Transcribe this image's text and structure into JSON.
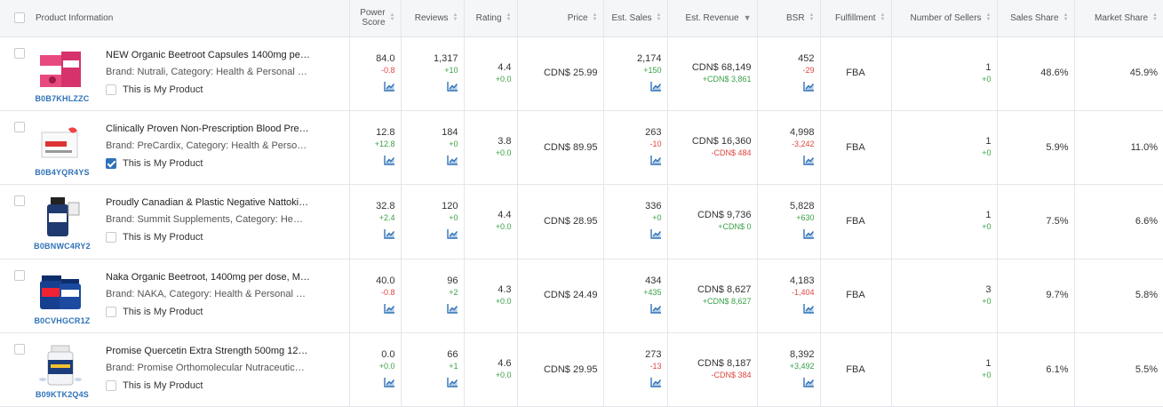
{
  "colors": {
    "accent": "#2f72b8",
    "positive": "#3aa047",
    "negative": "#e0453f",
    "header_bg": "#f4f6f8"
  },
  "columns": {
    "product_information": "Product Information",
    "power_score_line1": "Power",
    "power_score_line2": "Score",
    "reviews": "Reviews",
    "rating": "Rating",
    "price": "Price",
    "est_sales": "Est. Sales",
    "est_revenue": "Est. Revenue",
    "bsr": "BSR",
    "fulfillment": "Fulfillment",
    "number_of_sellers": "Number of Sellers",
    "sales_share": "Sales Share",
    "market_share": "Market Share"
  },
  "my_product_label": "This is My Product",
  "rows": [
    {
      "asin": "B0B7KHLZZC",
      "title": "NEW Organic Beetroot Capsules 1400mg per ...",
      "brand": "Brand: Nutrali,   Category: Health & Personal C...",
      "is_my_product": false,
      "thumb_icon": "pink-supplement-box-icon",
      "power_score": "84.0",
      "power_score_delta": "-0.8",
      "reviews": "1,317",
      "reviews_delta": "+10",
      "rating": "4.4",
      "rating_delta": "+0.0",
      "price": "CDN$ 25.99",
      "est_sales": "2,174",
      "est_sales_delta": "+150",
      "est_revenue": "CDN$ 68,149",
      "est_revenue_delta": "+CDN$ 3,861",
      "bsr": "452",
      "bsr_delta": "-29",
      "fulfillment": "FBA",
      "sellers": "1",
      "sellers_delta": "+0",
      "sales_share": "48.6%",
      "market_share": "45.9%"
    },
    {
      "asin": "B0B4YQR4YS",
      "title": "Clinically Proven Non-Prescription Blood Pres...",
      "brand": "Brand: PreCardix,   Category: Health & Person...",
      "is_my_product": true,
      "thumb_icon": "white-supplement-box-icon",
      "power_score": "12.8",
      "power_score_delta": "+12.8",
      "reviews": "184",
      "reviews_delta": "+0",
      "rating": "3.8",
      "rating_delta": "+0.0",
      "price": "CDN$ 89.95",
      "est_sales": "263",
      "est_sales_delta": "-10",
      "est_revenue": "CDN$ 16,360",
      "est_revenue_delta": "-CDN$ 484",
      "bsr": "4,998",
      "bsr_delta": "-3,242",
      "fulfillment": "FBA",
      "sellers": "1",
      "sellers_delta": "+0",
      "sales_share": "5.9%",
      "market_share": "11.0%"
    },
    {
      "asin": "B0BNWC4RY2",
      "title": "Proudly Canadian & Plastic Negative Nattokin...",
      "brand": "Brand: Summit Supplements,   Category: Healt...",
      "is_my_product": false,
      "thumb_icon": "navy-supplement-bottle-icon",
      "power_score": "32.8",
      "power_score_delta": "+2.4",
      "reviews": "120",
      "reviews_delta": "+0",
      "rating": "4.4",
      "rating_delta": "+0.0",
      "price": "CDN$ 28.95",
      "est_sales": "336",
      "est_sales_delta": "+0",
      "est_revenue": "CDN$ 9,736",
      "est_revenue_delta": "+CDN$ 0",
      "bsr": "5,828",
      "bsr_delta": "+630",
      "fulfillment": "FBA",
      "sellers": "1",
      "sellers_delta": "+0",
      "sales_share": "7.5%",
      "market_share": "6.6%"
    },
    {
      "asin": "B0CVHGCR1Z",
      "title": "Naka Organic Beetroot, 1400mg per dose, Ma...",
      "brand": "Brand: NAKA,   Category: Health & Personal C...",
      "is_my_product": false,
      "thumb_icon": "blue-supplement-bottles-icon",
      "power_score": "40.0",
      "power_score_delta": "-0.8",
      "reviews": "96",
      "reviews_delta": "+2",
      "rating": "4.3",
      "rating_delta": "+0.0",
      "price": "CDN$ 24.49",
      "est_sales": "434",
      "est_sales_delta": "+435",
      "est_revenue": "CDN$ 8,627",
      "est_revenue_delta": "+CDN$ 8,627",
      "bsr": "4,183",
      "bsr_delta": "-1,404",
      "fulfillment": "FBA",
      "sellers": "3",
      "sellers_delta": "+0",
      "sales_share": "9.7%",
      "market_share": "5.8%"
    },
    {
      "asin": "B09KTK2Q4S",
      "title": "Promise Quercetin Extra Strength 500mg 120...",
      "brand": "Brand: Promise Orthomolecular Nutraceuticals...",
      "is_my_product": false,
      "thumb_icon": "blue-capsule-bottle-icon",
      "power_score": "0.0",
      "power_score_delta": "+0.0",
      "reviews": "66",
      "reviews_delta": "+1",
      "rating": "4.6",
      "rating_delta": "+0.0",
      "price": "CDN$ 29.95",
      "est_sales": "273",
      "est_sales_delta": "-13",
      "est_revenue": "CDN$ 8,187",
      "est_revenue_delta": "-CDN$ 384",
      "bsr": "8,392",
      "bsr_delta": "+3,492",
      "fulfillment": "FBA",
      "sellers": "1",
      "sellers_delta": "+0",
      "sales_share": "6.1%",
      "market_share": "5.5%"
    }
  ]
}
